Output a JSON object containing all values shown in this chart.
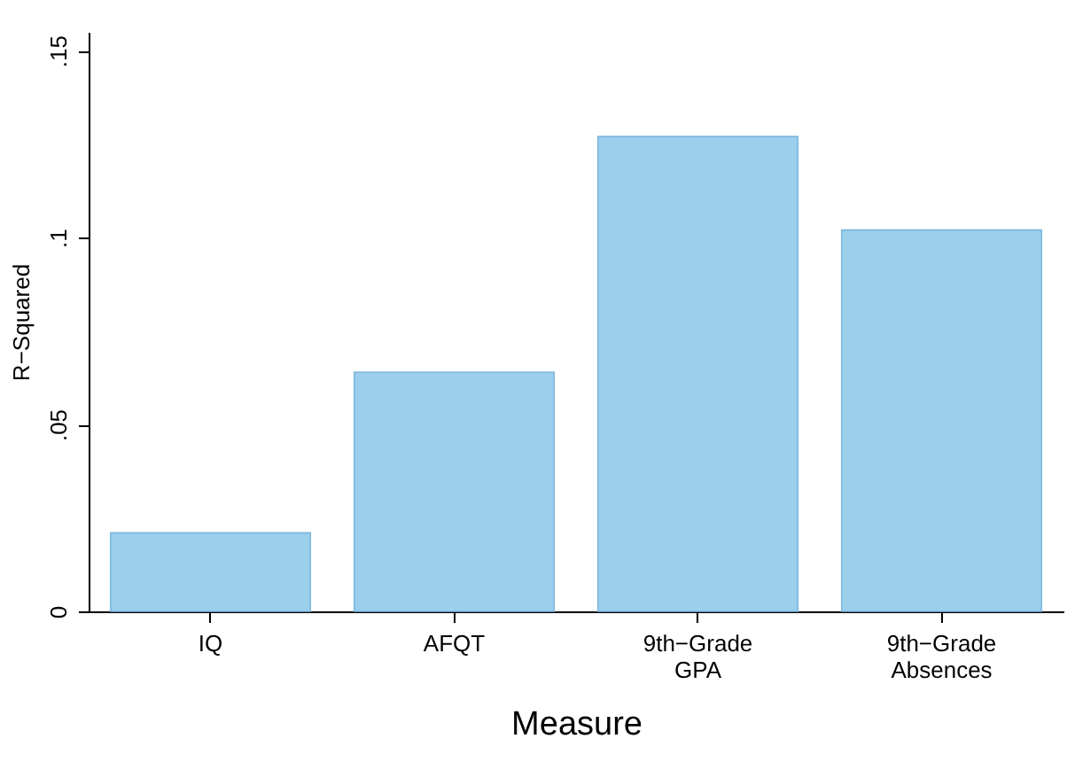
{
  "chart_data": {
    "type": "bar",
    "xlabel": "Measure",
    "ylabel": "R−Squared",
    "categories": [
      "IQ",
      "AFQT",
      "9th−Grade\nGPA",
      "9th−Grade\nAbsences"
    ],
    "values": [
      0.021,
      0.064,
      0.127,
      0.102
    ],
    "color": "#9ccfeb",
    "ylim": [
      0,
      0.155
    ],
    "yticks": [
      0,
      {
        "value": 0.05,
        "label": ".05"
      },
      {
        "value": 0.1,
        "label": ".1"
      },
      {
        "value": 0.15,
        "label": ".15"
      }
    ],
    "grid": false
  }
}
